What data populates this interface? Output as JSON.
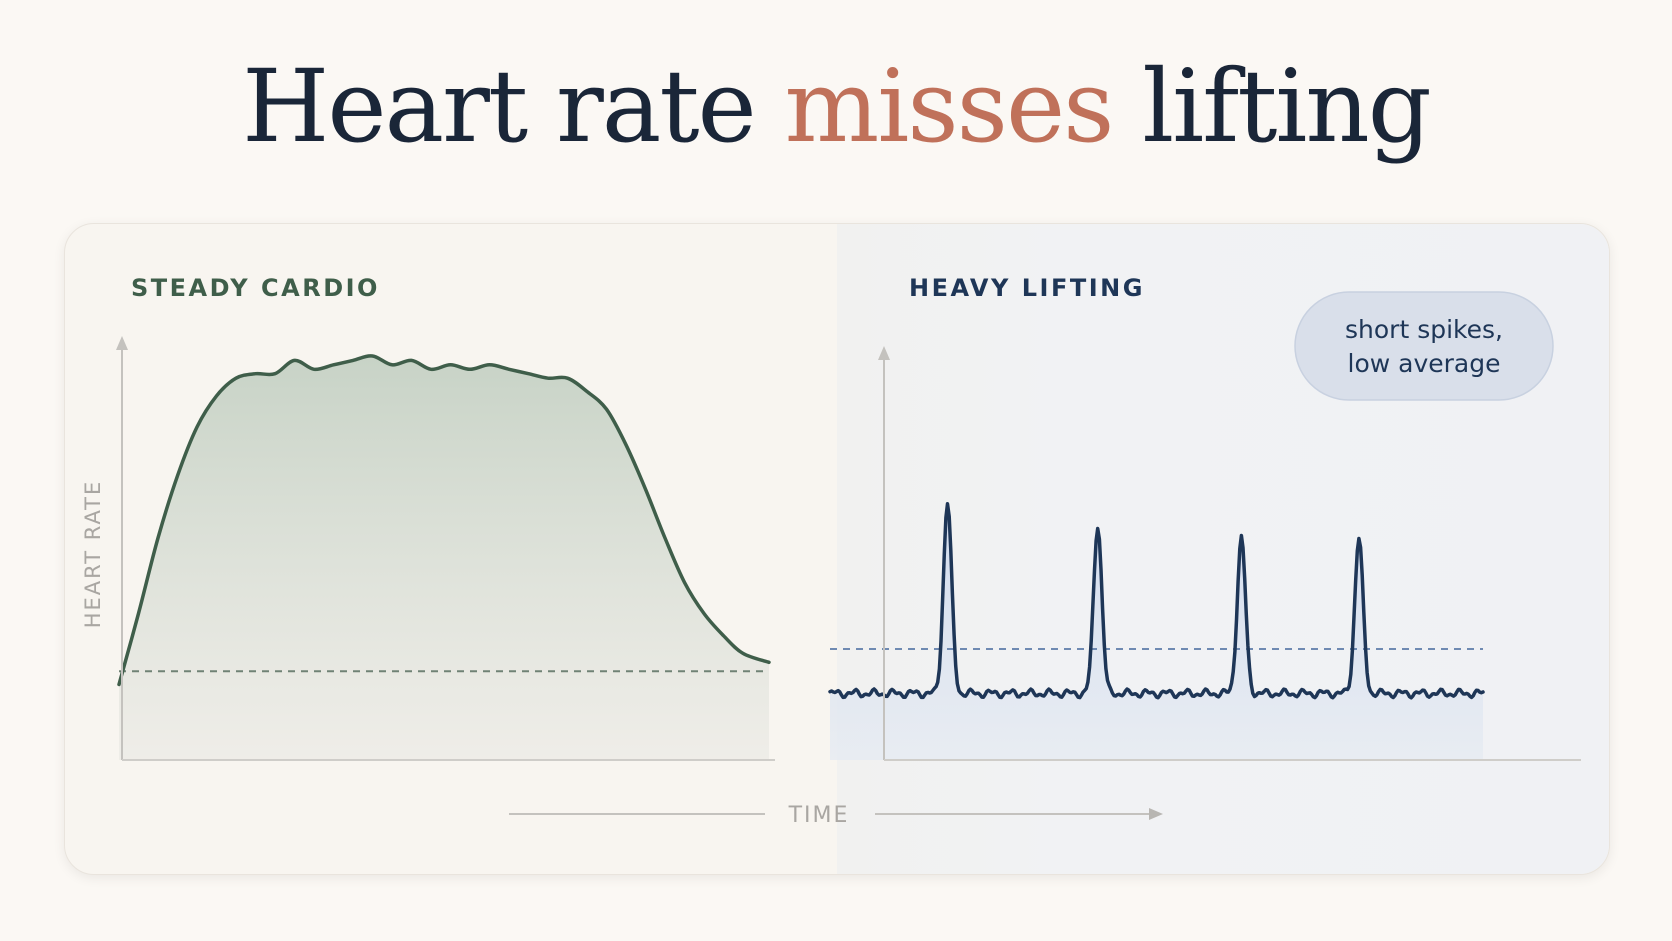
{
  "title": {
    "before": "Heart rate ",
    "accent": "misses",
    "after": " lifting",
    "accent_color": "#c0715a"
  },
  "chart_data": [
    {
      "type": "area",
      "panel": "left",
      "title": "STEADY CARDIO",
      "ylabel": "HEART RATE",
      "xlabel": "TIME",
      "ylim": [
        0,
        100
      ],
      "xlim": [
        0,
        100
      ],
      "color": "#3f5e4a",
      "fill_color": "#c9d4c8",
      "reference_line": 20,
      "x": [
        0,
        3,
        6,
        9,
        12,
        15,
        18,
        21,
        24,
        27,
        30,
        33,
        36,
        39,
        42,
        45,
        48,
        51,
        54,
        57,
        60,
        63,
        66,
        69,
        72,
        75,
        78,
        81,
        84,
        87,
        90,
        93,
        96,
        100
      ],
      "y": [
        17,
        33,
        50,
        64,
        75,
        82,
        86,
        87,
        87,
        90,
        88,
        89,
        90,
        91,
        89,
        90,
        88,
        89,
        88,
        89,
        88,
        87,
        86,
        86,
        83,
        79,
        71,
        61,
        50,
        40,
        33,
        28,
        24,
        22
      ]
    },
    {
      "type": "line",
      "panel": "right",
      "title": "HEAVY LIFTING",
      "xlabel": "TIME",
      "ylim": [
        0,
        100
      ],
      "xlim": [
        0,
        100
      ],
      "color": "#1e3657",
      "fill_color": "#dbe3ef",
      "reference_line": 25,
      "spikes": [
        {
          "x": 18,
          "y": 58
        },
        {
          "x": 41,
          "y": 53
        },
        {
          "x": 63,
          "y": 50
        },
        {
          "x": 81,
          "y": 50
        }
      ],
      "baseline": 15,
      "annotation": [
        "short spikes,",
        "low average"
      ]
    }
  ],
  "colors": {
    "cardio": "#3f5e4a",
    "lifting": "#1e3657",
    "axis": "#c4c2be",
    "axis_label": "#a9a6a2",
    "badge_bg": "#d9dfea",
    "badge_text": "#1e3657"
  }
}
